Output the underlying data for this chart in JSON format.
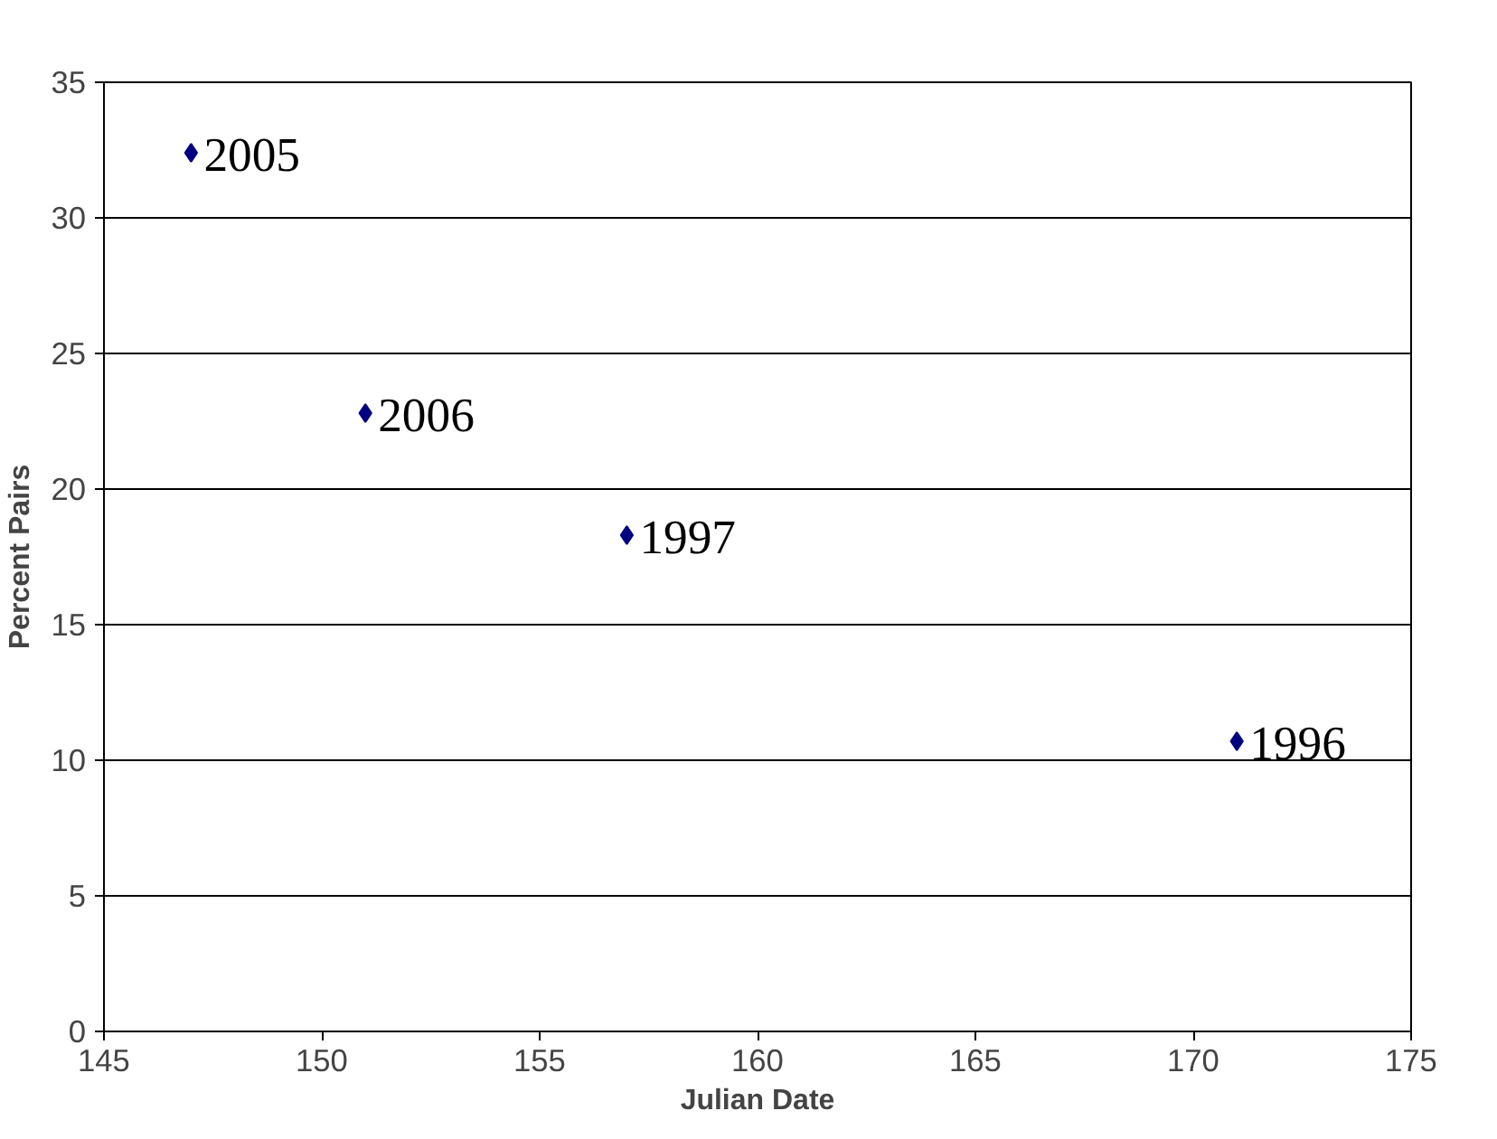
{
  "chart_data": {
    "type": "scatter",
    "xlabel": "Julian Date",
    "ylabel": "Percent Pairs",
    "x": [
      147,
      151,
      157,
      171
    ],
    "series": [
      {
        "color": "#000080",
        "values": [
          32.4,
          22.8,
          18.3,
          10.7
        ]
      }
    ],
    "marker": "diamond",
    "grid": "y",
    "xlim": [
      145,
      175
    ],
    "xticks": [
      145,
      150,
      155,
      160,
      165,
      170,
      175
    ],
    "ylim": [
      0,
      35
    ],
    "yticks": [
      0,
      5,
      10,
      15,
      20,
      25,
      30,
      35
    ],
    "annotations": [
      {
        "text": "2005",
        "x": 147,
        "y": 32.4
      },
      {
        "text": "2006",
        "x": 151,
        "y": 22.8
      },
      {
        "text": "1997",
        "x": 157,
        "y": 18.3
      },
      {
        "text": "1996",
        "x": 171,
        "y": 10.7
      }
    ]
  }
}
